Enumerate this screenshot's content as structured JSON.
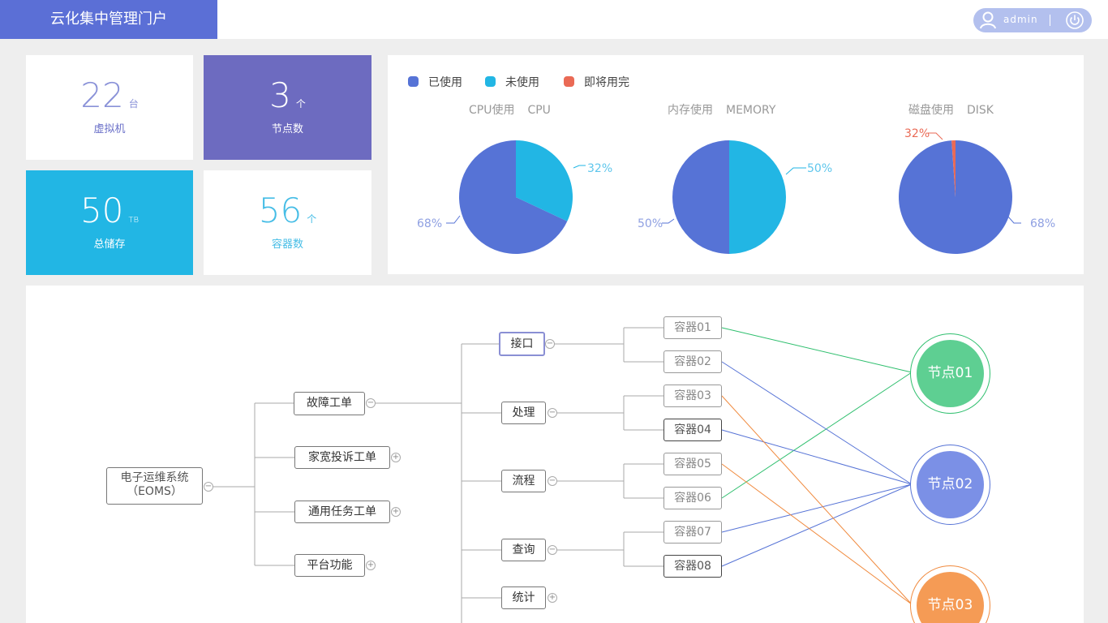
{
  "header": {
    "title": "云化集中管理门户",
    "username": "admin"
  },
  "stats": [
    {
      "value": "22",
      "unit": "台",
      "label": "虚拟机"
    },
    {
      "value": "3",
      "unit": "个",
      "label": "节点数"
    },
    {
      "value": "50",
      "unit": "TB",
      "label": "总储存"
    },
    {
      "value": "56",
      "unit": "个",
      "label": "容器数"
    }
  ],
  "colors": {
    "accent": "#5b6fd6",
    "used": "#5673d6",
    "free": "#22b6e4",
    "almost": "#ea6a55",
    "node1": "#5ecf92",
    "node2": "#7b90e6",
    "node3": "#f59b55"
  },
  "legend": [
    "已使用",
    "未使用",
    "即将用完"
  ],
  "pies": [
    {
      "title_cn": "CPU使用",
      "title_en": "CPU",
      "label_a": "32%",
      "label_b": "68%"
    },
    {
      "title_cn": "内存使用",
      "title_en": "MEMORY",
      "label_a": "50%",
      "label_b": "50%"
    },
    {
      "title_cn": "磁盘使用",
      "title_en": "DISK",
      "label_a": "32%",
      "label_b": "68%"
    }
  ],
  "chart_data": [
    {
      "type": "pie",
      "title": "CPU使用 CPU",
      "labels": [
        "已使用",
        "未使用"
      ],
      "values": [
        68,
        32
      ]
    },
    {
      "type": "pie",
      "title": "内存使用 MEMORY",
      "labels": [
        "已使用",
        "未使用"
      ],
      "values": [
        50,
        50
      ]
    },
    {
      "type": "pie",
      "title": "磁盘使用 DISK",
      "labels": [
        "已使用",
        "即将用完"
      ],
      "values": [
        68,
        32
      ]
    }
  ],
  "tree": {
    "root": {
      "line1": "电子运维系统",
      "line2": "（EOMS）"
    },
    "level1": [
      "故障工单",
      "家宽投诉工单",
      "通用任务工单",
      "平台功能"
    ],
    "level2": [
      "接口",
      "处理",
      "流程",
      "查询",
      "统计"
    ],
    "containers": [
      "容器01",
      "容器02",
      "容器03",
      "容器04",
      "容器05",
      "容器06",
      "容器07",
      "容器08"
    ],
    "nodes": [
      "节点01",
      "节点02",
      "节点03"
    ],
    "toggle_collapse": "−",
    "toggle_expand": "+"
  }
}
